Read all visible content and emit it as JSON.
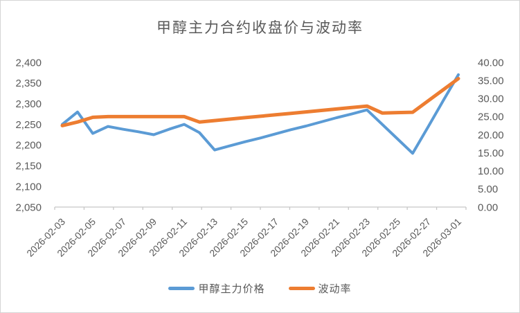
{
  "chart": {
    "colors": {
      "price_line": "#5B9BD5",
      "volatility_line": "#ED7D31",
      "axis_text": "#595959",
      "axis_line": "#C6C6C6"
    }
  },
  "chart_data": {
    "type": "line",
    "title": "甲醇主力合约收盘价与波动率",
    "grid": false,
    "legend_position": "bottom",
    "x": [
      "2026-02-03",
      "2026-02-04",
      "2026-02-05",
      "2026-02-06",
      "2026-02-07",
      "2026-02-08",
      "2026-02-09",
      "2026-02-10",
      "2026-02-11",
      "2026-02-12",
      "2026-02-13",
      "2026-02-14",
      "2026-02-15",
      "2026-02-16",
      "2026-02-17",
      "2026-02-18",
      "2026-02-19",
      "2026-02-20",
      "2026-02-21",
      "2026-02-22",
      "2026-02-23",
      "2026-02-24",
      "2026-02-25",
      "2026-02-26",
      "2026-02-27",
      "2026-02-28",
      "2026-03-01"
    ],
    "x_tick_labels": [
      "2026-02-03",
      "2026-02-05",
      "2026-02-07",
      "2026-02-09",
      "2026-02-11",
      "2026-02-13",
      "2026-02-15",
      "2026-02-17",
      "2026-02-19",
      "2026-02-21",
      "2026-02-23",
      "2026-02-25",
      "2026-02-27",
      "2026-03-01"
    ],
    "series": [
      {
        "name": "甲醇主力价格",
        "axis": "left",
        "color": "#5B9BD5",
        "stroke_width": 4,
        "values": [
          2250,
          2280,
          2228,
          2245,
          2238,
          2232,
          2225,
          2238,
          2250,
          2230,
          2188,
          2198,
          2208,
          2217,
          2227,
          2237,
          2246,
          2256,
          2266,
          2275,
          2285,
          2250,
          2215,
          2180,
          2243,
          2307,
          2370
        ]
      },
      {
        "name": "波动率",
        "axis": "right",
        "color": "#ED7D31",
        "stroke_width": 5,
        "values": [
          22.5,
          23.5,
          24.8,
          25.0,
          25.0,
          25.0,
          25.0,
          25.0,
          25.0,
          23.5,
          23.9,
          24.3,
          24.7,
          25.1,
          25.5,
          25.9,
          26.3,
          26.7,
          27.1,
          27.5,
          27.9,
          26.0,
          26.1,
          26.2,
          29.3,
          32.4,
          35.5
        ]
      }
    ],
    "y_left": {
      "min": 2050,
      "max": 2400,
      "step": 50,
      "format": "thousands",
      "tick_labels": [
        "2,050",
        "2,100",
        "2,150",
        "2,200",
        "2,250",
        "2,300",
        "2,350",
        "2,400"
      ]
    },
    "y_right": {
      "min": 0,
      "max": 40,
      "step": 5,
      "format": "2dp",
      "tick_labels": [
        "0.00",
        "5.00",
        "10.00",
        "15.00",
        "20.00",
        "25.00",
        "30.00",
        "35.00",
        "40.00"
      ]
    }
  }
}
